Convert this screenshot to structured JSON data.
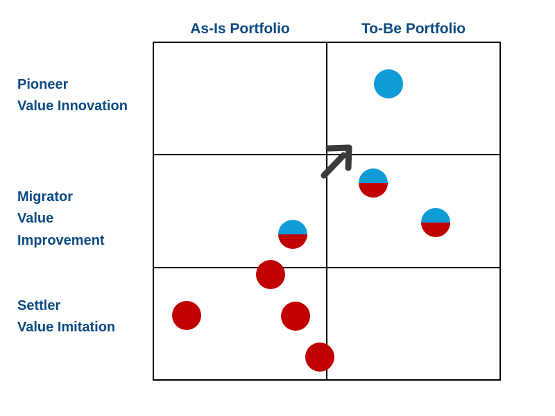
{
  "columns": [
    "As-Is Portfolio",
    "To-Be Portfolio"
  ],
  "rows": [
    {
      "lines": [
        "Pioneer",
        "Value Innovation"
      ]
    },
    {
      "lines": [
        "Migrator",
        "Value",
        "Improvement"
      ]
    },
    {
      "lines": [
        "Settler",
        "Value Imitation"
      ]
    }
  ]
}
